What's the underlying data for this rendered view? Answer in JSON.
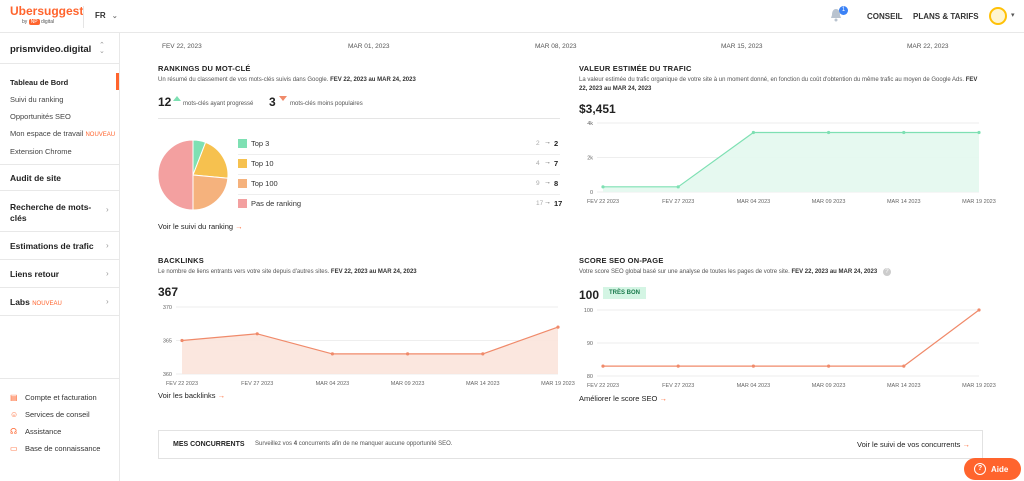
{
  "topbar": {
    "logo": "Ubersuggest",
    "logo_by": "by",
    "logo_np": "NP",
    "logo_digital": "digital",
    "lang": "FR",
    "notif_count": "1",
    "conseil": "CONSEIL",
    "plans": "PLANS & TARIFS"
  },
  "sidebar": {
    "project": "prismvideo.digital",
    "items": [
      {
        "label": "Tableau de Bord",
        "new": ""
      },
      {
        "label": "Suivi du ranking",
        "new": ""
      },
      {
        "label": "Opportunités SEO",
        "new": ""
      },
      {
        "label": "Mon espace de travail",
        "new": "NOUVEAU"
      },
      {
        "label": "Extension Chrome",
        "new": ""
      }
    ],
    "sections": [
      {
        "label": "Audit de site"
      },
      {
        "label": "Recherche de mots-clés"
      },
      {
        "label": "Estimations de trafic"
      },
      {
        "label": "Liens retour"
      },
      {
        "label": "Labs",
        "new": "NOUVEAU"
      }
    ],
    "footer": [
      {
        "label": "Compte et facturation",
        "icon": "card-icon"
      },
      {
        "label": "Services de conseil",
        "icon": "people-icon"
      },
      {
        "label": "Assistance",
        "icon": "headset-icon"
      },
      {
        "label": "Base de connaissance",
        "icon": "book-icon"
      }
    ]
  },
  "datebar": [
    "FEV 22, 2023",
    "MAR 01, 2023",
    "MAR 08, 2023",
    "MAR 15, 2023",
    "MAR 22, 2023"
  ],
  "rankings": {
    "title": "RANKINGS DU MOT-CLÉ",
    "desc_pre": "Un résumé du classement de vos mots-clés suivis dans Google.",
    "desc_range": "FEV 22, 2023 au MAR 24, 2023",
    "up_count": "12",
    "up_label": "mots-clés ayant progressé",
    "down_count": "3",
    "down_label": "mots-clés moins populaires",
    "legend": [
      {
        "label": "Top 3",
        "prev": "2",
        "curr": "2",
        "color": "#7ee0b3"
      },
      {
        "label": "Top 10",
        "prev": "4",
        "curr": "7",
        "color": "#f6c14f"
      },
      {
        "label": "Top 100",
        "prev": "9",
        "curr": "8",
        "color": "#f5b27d"
      },
      {
        "label": "Pas de ranking",
        "prev": "17",
        "curr": "17",
        "color": "#f3a0a0"
      }
    ],
    "link": "Voir le suivi du ranking"
  },
  "trafic": {
    "title": "VALEUR ESTIMÉE DU TRAFIC",
    "desc_pre": "La valeur estimée du trafic organique de votre site à un moment donné, en fonction du coût d'obtention du même trafic au moyen de Google Ads.",
    "desc_range": "FEV 22, 2023 au MAR 24, 2023",
    "value": "$3,451"
  },
  "backlinks": {
    "title": "BACKLINKS",
    "desc_pre": "Le nombre de liens entrants vers votre site depuis d'autres sites.",
    "desc_range": "FEV 22, 2023 au MAR 24, 2023",
    "value": "367",
    "link": "Voir les backlinks"
  },
  "seo": {
    "title": "SCORE SEO ON-PAGE",
    "desc_pre": "Votre score SEO global basé sur une analyse de toutes les pages de votre site.",
    "desc_range": "FEV 22, 2023 au MAR 24, 2023",
    "value": "100",
    "badge": "TRÈS BON",
    "link": "Améliorer le score SEO"
  },
  "concurrents": {
    "title": "MES CONCURRENTS",
    "desc_pre": "Surveillez vos",
    "desc_num": "4",
    "desc_post": "concurrents afin de ne manquer aucune opportunité SEO.",
    "link": "Voir le suivi de vos concurrents"
  },
  "help": {
    "label": "Aide"
  },
  "colors": {
    "accent": "#ff642d",
    "green": "#7ee0b3",
    "salmon": "#f08a6a"
  },
  "chart_data": [
    {
      "type": "pie",
      "categories": [
        "Top 3",
        "Top 10",
        "Top 100",
        "Pas de ranking"
      ],
      "values": [
        2,
        7,
        8,
        17
      ],
      "colors": [
        "#7ee0b3",
        "#f6c14f",
        "#f5b27d",
        "#f3a0a0"
      ]
    },
    {
      "type": "area",
      "x": [
        "FEV 22 2023",
        "FEV 27 2023",
        "MAR 04 2023",
        "MAR 09 2023",
        "MAR 14 2023",
        "MAR 19 2023"
      ],
      "values": [
        300,
        300,
        3451,
        3451,
        3451,
        3451
      ],
      "yticks": [
        "0",
        "2k",
        "4k"
      ],
      "ylim": [
        0,
        4000
      ],
      "color": "#7ee0b3"
    },
    {
      "type": "area",
      "x": [
        "FEV 22 2023",
        "FEV 27 2023",
        "MAR 04 2023",
        "MAR 09 2023",
        "MAR 14 2023",
        "MAR 19 2023"
      ],
      "values": [
        365,
        366,
        363,
        363,
        363,
        367
      ],
      "yticks": [
        "360",
        "365",
        "370"
      ],
      "ylim": [
        360,
        370
      ],
      "color": "#f08a6a"
    },
    {
      "type": "line",
      "x": [
        "FEV 22 2023",
        "FEV 27 2023",
        "MAR 04 2023",
        "MAR 09 2023",
        "MAR 14 2023",
        "MAR 19 2023"
      ],
      "values": [
        83,
        83,
        83,
        83,
        83,
        100
      ],
      "yticks": [
        "80",
        "90",
        "100"
      ],
      "ylim": [
        80,
        100
      ],
      "color": "#f08a6a"
    }
  ]
}
